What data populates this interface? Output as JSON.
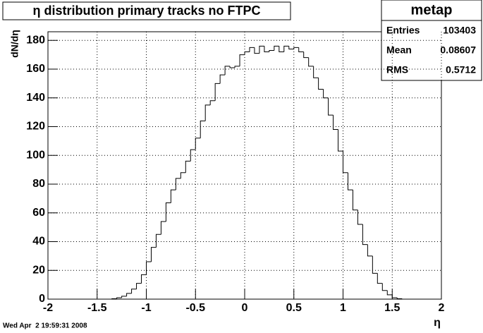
{
  "chart_data": {
    "type": "histogram",
    "title": "η distribution primary tracks no FTPC",
    "x_label": "η",
    "y_label": "dN/dη",
    "bins": [
      -2,
      -1.95,
      -1.9,
      -1.85,
      -1.8,
      -1.75,
      -1.7,
      -1.65,
      -1.6,
      -1.55,
      -1.5,
      -1.45,
      -1.4,
      -1.35,
      -1.3,
      -1.25,
      -1.2,
      -1.15,
      -1.1,
      -1.05,
      -1,
      -0.95,
      -0.9,
      -0.85,
      -0.8,
      -0.75,
      -0.7,
      -0.65,
      -0.6,
      -0.55,
      -0.5,
      -0.45,
      -0.4,
      -0.35,
      -0.3,
      -0.25,
      -0.2,
      -0.15,
      -0.1,
      -0.05,
      0,
      0.05,
      0.1,
      0.15,
      0.2,
      0.25,
      0.3,
      0.35,
      0.4,
      0.45,
      0.5,
      0.55,
      0.6,
      0.65,
      0.7,
      0.75,
      0.8,
      0.85,
      0.9,
      0.95,
      1,
      1.05,
      1.1,
      1.15,
      1.2,
      1.25,
      1.3,
      1.35,
      1.4,
      1.45,
      1.5,
      1.55,
      1.6,
      1.65,
      1.7,
      1.75,
      1.8,
      1.85,
      1.9,
      1.95,
      2
    ],
    "values": [
      0,
      0,
      0,
      0,
      0,
      0,
      0,
      0,
      0,
      0,
      0,
      0,
      0,
      0.3,
      1,
      2,
      4,
      7,
      11,
      17,
      26,
      36,
      45,
      54,
      67,
      76,
      84,
      88,
      96,
      104,
      112,
      124,
      135,
      138,
      150,
      156,
      162,
      161,
      162,
      170,
      172,
      175,
      171,
      176,
      172,
      173,
      176,
      172,
      176,
      174,
      175,
      172,
      168,
      162,
      154,
      146,
      140,
      128,
      118,
      103,
      88,
      76,
      62,
      52,
      38,
      30,
      18,
      11,
      6,
      3,
      1,
      0.3,
      0,
      0,
      0,
      0,
      0,
      0,
      0,
      0
    ],
    "color": "#000000",
    "xlim": [
      -2,
      2
    ],
    "ylim": [
      0,
      186
    ],
    "xticks": [
      -2,
      -1.5,
      -1,
      -0.5,
      0,
      0.5,
      1,
      1.5,
      2
    ],
    "yticks": [
      0,
      20,
      40,
      60,
      80,
      100,
      120,
      140,
      160,
      180
    ],
    "grid": true,
    "stats": {
      "name": "metap",
      "rows": [
        {
          "label": "Entries",
          "value": 103403
        },
        {
          "label": "Mean",
          "value": 0.08607
        },
        {
          "label": "RMS",
          "value": 0.5712
        }
      ]
    },
    "footer": "Wed Apr  2 19:59:31 2008"
  }
}
